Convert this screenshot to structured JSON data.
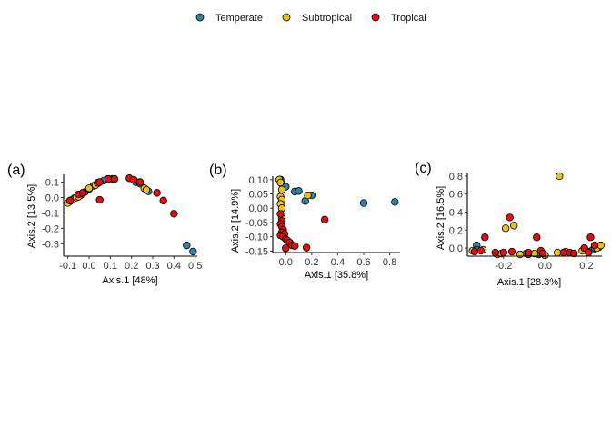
{
  "colors": {
    "Temperate": "#2E86A6",
    "Subtropical": "#E8C020",
    "Tropical": "#DD1111"
  },
  "legend": {
    "placement": "top-center",
    "items": [
      {
        "name": "Temperate",
        "color": "#2E86A6"
      },
      {
        "name": "Subtropical",
        "color": "#E8C020"
      },
      {
        "name": "Tropical",
        "color": "#DD1111"
      }
    ]
  },
  "chart_data": [
    {
      "type": "scatter",
      "panel": "(a)",
      "xlabel": "Axis.1   [48%]",
      "ylabel": "Axis.2   [13.5%]",
      "xlim": [
        -0.12,
        0.51
      ],
      "ylim": [
        -0.38,
        0.15
      ],
      "xticks": [
        -0.1,
        0.0,
        0.1,
        0.2,
        0.3,
        0.4,
        0.5
      ],
      "xtick_labels": [
        "-0.1",
        "0.0",
        "0.1",
        "0.2",
        "0.3",
        "0.4",
        "0.5"
      ],
      "yticks": [
        -0.3,
        -0.2,
        -0.1,
        0.0,
        0.1
      ],
      "ytick_labels": [
        "-0.3",
        "-0.2",
        "-0.1",
        "0.0",
        "0.1"
      ],
      "grid": false,
      "series": [
        {
          "name": "Temperate",
          "points": [
            [
              -0.09,
              -0.025
            ],
            [
              -0.07,
              -0.005
            ],
            [
              -0.04,
              0.015
            ],
            [
              -0.02,
              0.035
            ],
            [
              0.0,
              0.055
            ],
            [
              0.02,
              0.075
            ],
            [
              0.04,
              0.09
            ],
            [
              0.07,
              0.11
            ],
            [
              0.09,
              0.12
            ],
            [
              0.11,
              0.12
            ],
            [
              0.22,
              0.1
            ],
            [
              0.24,
              0.09
            ],
            [
              0.28,
              0.04
            ],
            [
              0.46,
              -0.31
            ],
            [
              0.49,
              -0.35
            ]
          ]
        },
        {
          "name": "Subtropical",
          "points": [
            [
              -0.1,
              -0.035
            ],
            [
              -0.08,
              -0.015
            ],
            [
              -0.06,
              0.0
            ],
            [
              -0.05,
              0.005
            ],
            [
              0.0,
              0.06
            ],
            [
              0.03,
              0.08
            ],
            [
              0.26,
              0.06
            ],
            [
              0.27,
              0.05
            ]
          ]
        },
        {
          "name": "Tropical",
          "points": [
            [
              -0.09,
              -0.02
            ],
            [
              -0.05,
              0.02
            ],
            [
              -0.03,
              0.03
            ],
            [
              0.04,
              0.095
            ],
            [
              0.05,
              0.1
            ],
            [
              0.05,
              -0.015
            ],
            [
              0.09,
              0.12
            ],
            [
              0.12,
              0.12
            ],
            [
              0.19,
              0.125
            ],
            [
              0.21,
              0.115
            ],
            [
              0.24,
              0.1
            ],
            [
              0.32,
              0.03
            ],
            [
              0.35,
              -0.02
            ],
            [
              0.4,
              -0.105
            ]
          ]
        }
      ]
    },
    {
      "type": "scatter",
      "panel": "(b)",
      "xlabel": "Axis.1   [35.8%]",
      "ylabel": "Axis.2   [14.9%]",
      "xlim": [
        -0.1,
        0.88
      ],
      "ylim": [
        -0.155,
        0.112
      ],
      "xticks": [
        0.0,
        0.2,
        0.4,
        0.6,
        0.8
      ],
      "xtick_labels": [
        "0.0",
        "0.2",
        "0.4",
        "0.6",
        "0.8"
      ],
      "yticks": [
        -0.15,
        -0.1,
        -0.05,
        0.0,
        0.05,
        0.1
      ],
      "ytick_labels": [
        "-0.15",
        "-0.10",
        "-0.05",
        "0.00",
        "0.05",
        "0.10"
      ],
      "grid": false,
      "series": [
        {
          "name": "Temperate",
          "points": [
            [
              -0.04,
              0.1
            ],
            [
              -0.03,
              0.085
            ],
            [
              -0.02,
              0.08
            ],
            [
              0.0,
              0.075
            ],
            [
              0.07,
              0.058
            ],
            [
              0.1,
              0.06
            ],
            [
              0.15,
              0.025
            ],
            [
              0.2,
              0.045
            ],
            [
              0.6,
              0.018
            ],
            [
              0.84,
              0.022
            ]
          ]
        },
        {
          "name": "Subtropical",
          "points": [
            [
              -0.05,
              0.1
            ],
            [
              -0.04,
              0.09
            ],
            [
              -0.03,
              0.065
            ],
            [
              -0.04,
              0.04
            ],
            [
              -0.03,
              0.03
            ],
            [
              -0.04,
              0.015
            ],
            [
              -0.03,
              0.0
            ],
            [
              0.17,
              0.045
            ],
            [
              -0.03,
              -0.035
            ]
          ]
        },
        {
          "name": "Tropical",
          "points": [
            [
              -0.04,
              -0.02
            ],
            [
              -0.03,
              -0.045
            ],
            [
              -0.04,
              -0.055
            ],
            [
              -0.03,
              -0.065
            ],
            [
              -0.02,
              -0.075
            ],
            [
              -0.03,
              -0.085
            ],
            [
              -0.01,
              -0.09
            ],
            [
              -0.04,
              -0.095
            ],
            [
              -0.02,
              -0.1
            ],
            [
              0.0,
              -0.108
            ],
            [
              0.01,
              -0.112
            ],
            [
              0.03,
              -0.12
            ],
            [
              0.05,
              -0.13
            ],
            [
              0.07,
              -0.132
            ],
            [
              0.0,
              -0.14
            ],
            [
              0.16,
              -0.138
            ],
            [
              0.3,
              -0.04
            ]
          ]
        }
      ]
    },
    {
      "type": "scatter",
      "panel": "(c)",
      "xlabel": "Axis.1   [28.3%]",
      "ylabel": "Axis.2   [16.5%]",
      "xlim": [
        -0.375,
        0.275
      ],
      "ylim": [
        -0.09,
        0.84
      ],
      "xticks": [
        -0.2,
        0.0,
        0.2
      ],
      "xtick_labels": [
        "-0.2",
        "0.0",
        "0.2"
      ],
      "yticks": [
        0.0,
        0.2,
        0.4,
        0.6,
        0.8
      ],
      "ytick_labels": [
        "0.0",
        "0.2",
        "0.4",
        "0.6",
        "0.8"
      ],
      "grid": false,
      "series": [
        {
          "name": "Temperate",
          "points": [
            [
              -0.33,
              0.03
            ],
            [
              -0.33,
              -0.02
            ],
            [
              -0.09,
              -0.06
            ],
            [
              -0.08,
              -0.07
            ],
            [
              -0.03,
              -0.07
            ],
            [
              0.21,
              -0.04
            ],
            [
              0.23,
              -0.02
            ],
            [
              0.24,
              0.0
            ],
            [
              0.25,
              0.02
            ],
            [
              0.26,
              0.01
            ]
          ]
        },
        {
          "name": "Subtropical",
          "points": [
            [
              -0.35,
              -0.03
            ],
            [
              -0.3,
              -0.02
            ],
            [
              -0.23,
              -0.07
            ],
            [
              -0.21,
              -0.06
            ],
            [
              -0.19,
              0.22
            ],
            [
              -0.15,
              0.25
            ],
            [
              -0.12,
              -0.07
            ],
            [
              -0.05,
              -0.06
            ],
            [
              0.0,
              -0.08
            ],
            [
              0.06,
              -0.05
            ],
            [
              0.07,
              0.8
            ],
            [
              0.1,
              -0.04
            ],
            [
              0.18,
              -0.03
            ],
            [
              0.25,
              0.0
            ],
            [
              0.27,
              0.03
            ]
          ]
        },
        {
          "name": "Tropical",
          "points": [
            [
              -0.34,
              -0.04
            ],
            [
              -0.31,
              -0.03
            ],
            [
              -0.29,
              0.12
            ],
            [
              -0.24,
              -0.05
            ],
            [
              -0.2,
              -0.05
            ],
            [
              -0.16,
              -0.04
            ],
            [
              -0.17,
              0.34
            ],
            [
              -0.08,
              -0.05
            ],
            [
              -0.04,
              0.12
            ],
            [
              -0.02,
              -0.03
            ],
            [
              -0.01,
              -0.06
            ],
            [
              0.09,
              -0.05
            ],
            [
              0.12,
              -0.05
            ],
            [
              0.14,
              -0.06
            ],
            [
              0.19,
              0.0
            ],
            [
              0.22,
              0.12
            ],
            [
              0.24,
              0.03
            ],
            [
              0.21,
              -0.05
            ]
          ]
        }
      ]
    }
  ]
}
